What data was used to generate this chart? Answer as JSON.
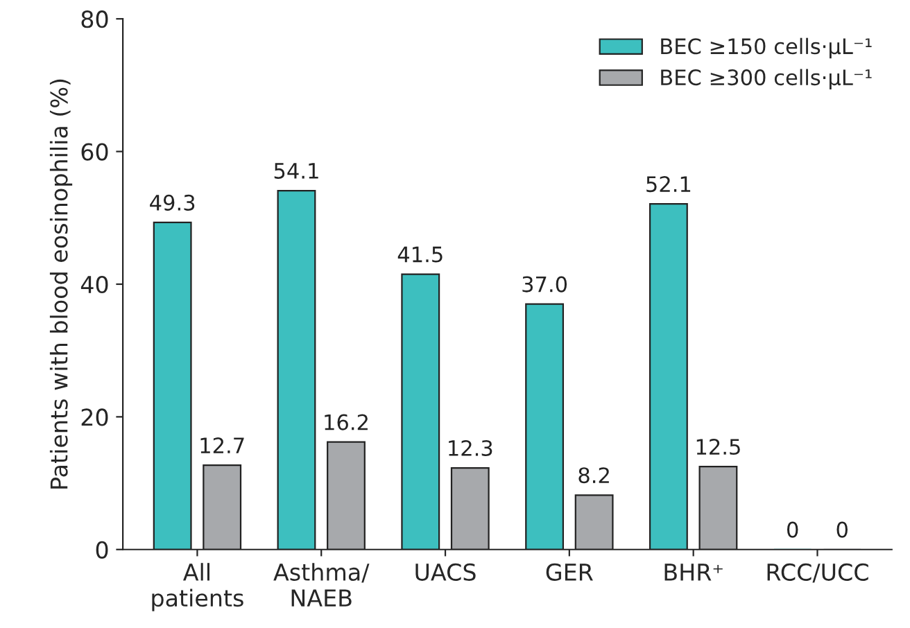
{
  "chart_data": {
    "type": "bar",
    "ylabel": "Patients with blood eosinophilia (%)",
    "categories": [
      "All\npatients",
      "Asthma/\nNAEB",
      "UACS",
      "GER",
      "BHR⁺",
      "RCC/UCC"
    ],
    "series": [
      {
        "name": "BEC ≥150 cells·µL⁻¹",
        "color": "#3dbfbf",
        "values": [
          49.3,
          54.1,
          41.5,
          37.0,
          52.1,
          0
        ],
        "value_labels": [
          "49.3",
          "54.1",
          "41.5",
          "37.0",
          "52.1",
          "0"
        ]
      },
      {
        "name": "BEC ≥300 cells·µL⁻¹",
        "color": "#a7a9ac",
        "values": [
          12.7,
          16.2,
          12.3,
          8.2,
          12.5,
          0
        ],
        "value_labels": [
          "12.7",
          "16.2",
          "12.3",
          "8.2",
          "12.5",
          "0"
        ]
      }
    ],
    "ylim": [
      0,
      80
    ],
    "yticks": [
      0,
      20,
      40,
      60,
      80
    ],
    "grid": false,
    "legend": "top right"
  }
}
